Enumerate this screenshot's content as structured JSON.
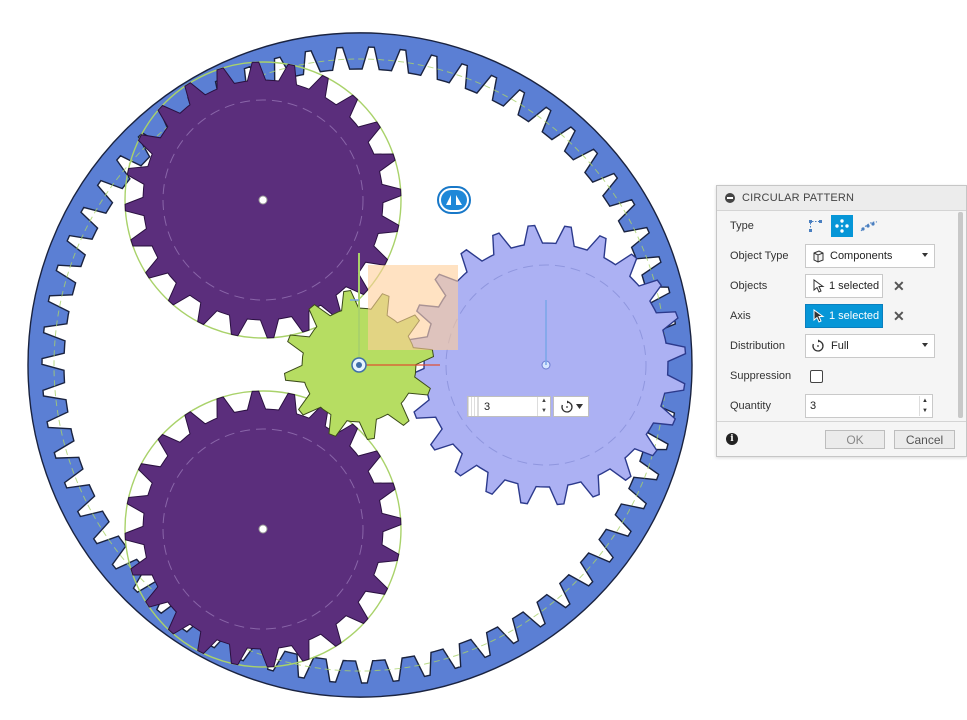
{
  "viewport": {
    "colors": {
      "ring_gear": "#5b7fd4",
      "planet_gear": "#5b2e7c",
      "sun_gear": "#b6dd62",
      "selected_gear": "#acb1f3",
      "pitch_circle": "#a9d26a",
      "preview_plane": "#ffcf99",
      "axis_red": "#e04b2e"
    },
    "icons": [
      "pivot-manipulator-icon",
      "axis-origin-icon"
    ],
    "quantity_widget": {
      "value": "3"
    }
  },
  "dialog": {
    "title": "CIRCULAR PATTERN",
    "rows": {
      "type": {
        "label": "Type",
        "options": [
          "pattern-rectangular-icon",
          "pattern-circular-icon",
          "pattern-path-icon"
        ],
        "active": "pattern-circular-icon"
      },
      "object_type": {
        "label": "Object Type",
        "value": "Components"
      },
      "objects": {
        "label": "Objects",
        "value": "1 selected"
      },
      "axis": {
        "label": "Axis",
        "value": "1 selected"
      },
      "distribution": {
        "label": "Distribution",
        "value": "Full"
      },
      "suppression": {
        "label": "Suppression",
        "checked": false
      },
      "quantity": {
        "label": "Quantity",
        "value": "3"
      }
    },
    "buttons": {
      "ok": "OK",
      "cancel": "Cancel"
    }
  }
}
